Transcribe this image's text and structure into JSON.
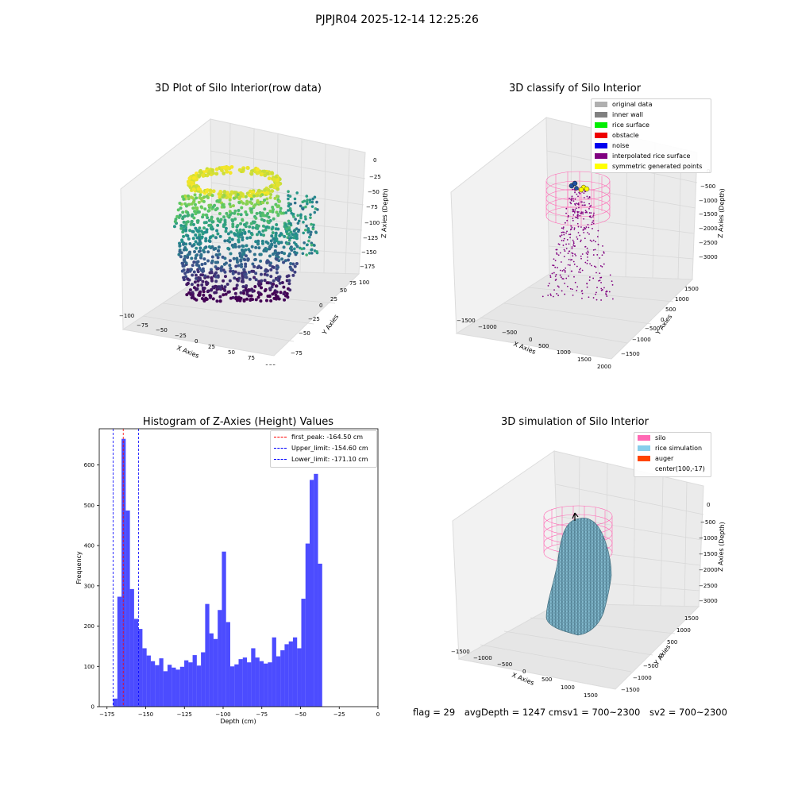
{
  "suptitle": "PJPJR04 2025-12-14 12:25:26",
  "panels": {
    "raw": {
      "title": "3D Plot of Silo Interior(row data)",
      "xlabel": "X Axies",
      "ylabel": "Y Axies",
      "zlabel": "Z Axies (Depth)",
      "xticks": [
        "−100",
        "−75",
        "−50",
        "−25",
        "0",
        "25",
        "50",
        "75",
        "100"
      ],
      "yticks": [
        "−75",
        "−50",
        "−25",
        "0",
        "25",
        "50",
        "75",
        "100"
      ],
      "zticks": [
        "0",
        "−25",
        "−50",
        "−75",
        "−100",
        "−125",
        "−150",
        "−175"
      ]
    },
    "classify": {
      "title": "3D classify of Silo Interior",
      "xlabel": "X Axies",
      "ylabel": "Y Axies",
      "zlabel": "Z Axies (Depth)",
      "xticks": [
        "−1500",
        "−1000",
        "−500",
        "0",
        "500",
        "1000",
        "1500",
        "2000"
      ],
      "yticks": [
        "−1500",
        "−1000",
        "−500",
        "0",
        "500",
        "1000",
        "1500"
      ],
      "zticks": [
        "0",
        "−500",
        "−1000",
        "−1500",
        "−2000",
        "−2500",
        "−3000"
      ],
      "legend": [
        {
          "label": "original data",
          "color": "#b0b0b0"
        },
        {
          "label": "inner wall",
          "color": "#808080"
        },
        {
          "label": "rice surface",
          "color": "#00ee00"
        },
        {
          "label": "obstacle",
          "color": "#ee0000"
        },
        {
          "label": "noise",
          "color": "#0000ee"
        },
        {
          "label": "interpolated rice surface",
          "color": "#800080"
        },
        {
          "label": "symmetric generated points",
          "color": "#ffff00"
        }
      ]
    },
    "simulation": {
      "title": "3D simulation of Silo Interior",
      "xlabel": "X Axies",
      "ylabel": "Y Axies",
      "zlabel": "Z Axies (Depth)",
      "xticks": [
        "−1500",
        "−1000",
        "−500",
        "0",
        "500",
        "1000",
        "1500"
      ],
      "yticks": [
        "−1500",
        "−1000",
        "−500",
        "0",
        "500",
        "1000",
        "1500"
      ],
      "zticks": [
        "0",
        "−500",
        "−1000",
        "−1500",
        "−2000",
        "−2500",
        "−3000"
      ],
      "legend": [
        {
          "label": "silo",
          "color": "#ff69b4"
        },
        {
          "label": "rice simulation",
          "color": "#87ceeb"
        },
        {
          "label": "auger",
          "color": "#ff4500"
        },
        {
          "label": "center(100,-17)",
          "color": ""
        }
      ]
    }
  },
  "chart_data": {
    "type": "bar",
    "title": "Histogram of Z-Axies (Height) Values",
    "xlabel": "Depth (cm)",
    "ylabel": "Frequency",
    "xlim": [
      -180,
      0
    ],
    "ylim": [
      0,
      690
    ],
    "bar_color": "#0000ff",
    "bin_start": -171,
    "bin_width": 2.7,
    "x_ticks": [
      -175,
      -150,
      -125,
      -100,
      -75,
      -50,
      -25,
      0
    ],
    "x_tick_labels": [
      "−175",
      "−150",
      "−125",
      "−100",
      "−75",
      "−50",
      "−25",
      "0"
    ],
    "y_ticks": [
      0,
      100,
      200,
      300,
      400,
      500,
      600
    ],
    "values": [
      20,
      273,
      665,
      487,
      292,
      218,
      193,
      145,
      127,
      113,
      103,
      120,
      88,
      104,
      97,
      92,
      99,
      115,
      110,
      128,
      102,
      135,
      255,
      182,
      168,
      240,
      385,
      210,
      100,
      105,
      118,
      122,
      110,
      145,
      122,
      113,
      107,
      110,
      172,
      125,
      140,
      155,
      162,
      172,
      145,
      268,
      405,
      563,
      578,
      355
    ],
    "vlines": [
      {
        "label": "first_peak: -164.50 cm",
        "x": -164.5,
        "color": "#ff0000"
      },
      {
        "label": "Upper_limit: -154.60 cm",
        "x": -154.6,
        "color": "#0000ff"
      },
      {
        "label": "Lower_limit: -171.10 cm",
        "x": -171.1,
        "color": "#0000ff"
      }
    ],
    "legend_position": "upper right"
  },
  "footer": {
    "flag": "flag = 29",
    "avg": "avgDepth = 1247 cm",
    "sv1": "sv1 = 700~2300",
    "sv2": "sv2 = 700~2300"
  }
}
